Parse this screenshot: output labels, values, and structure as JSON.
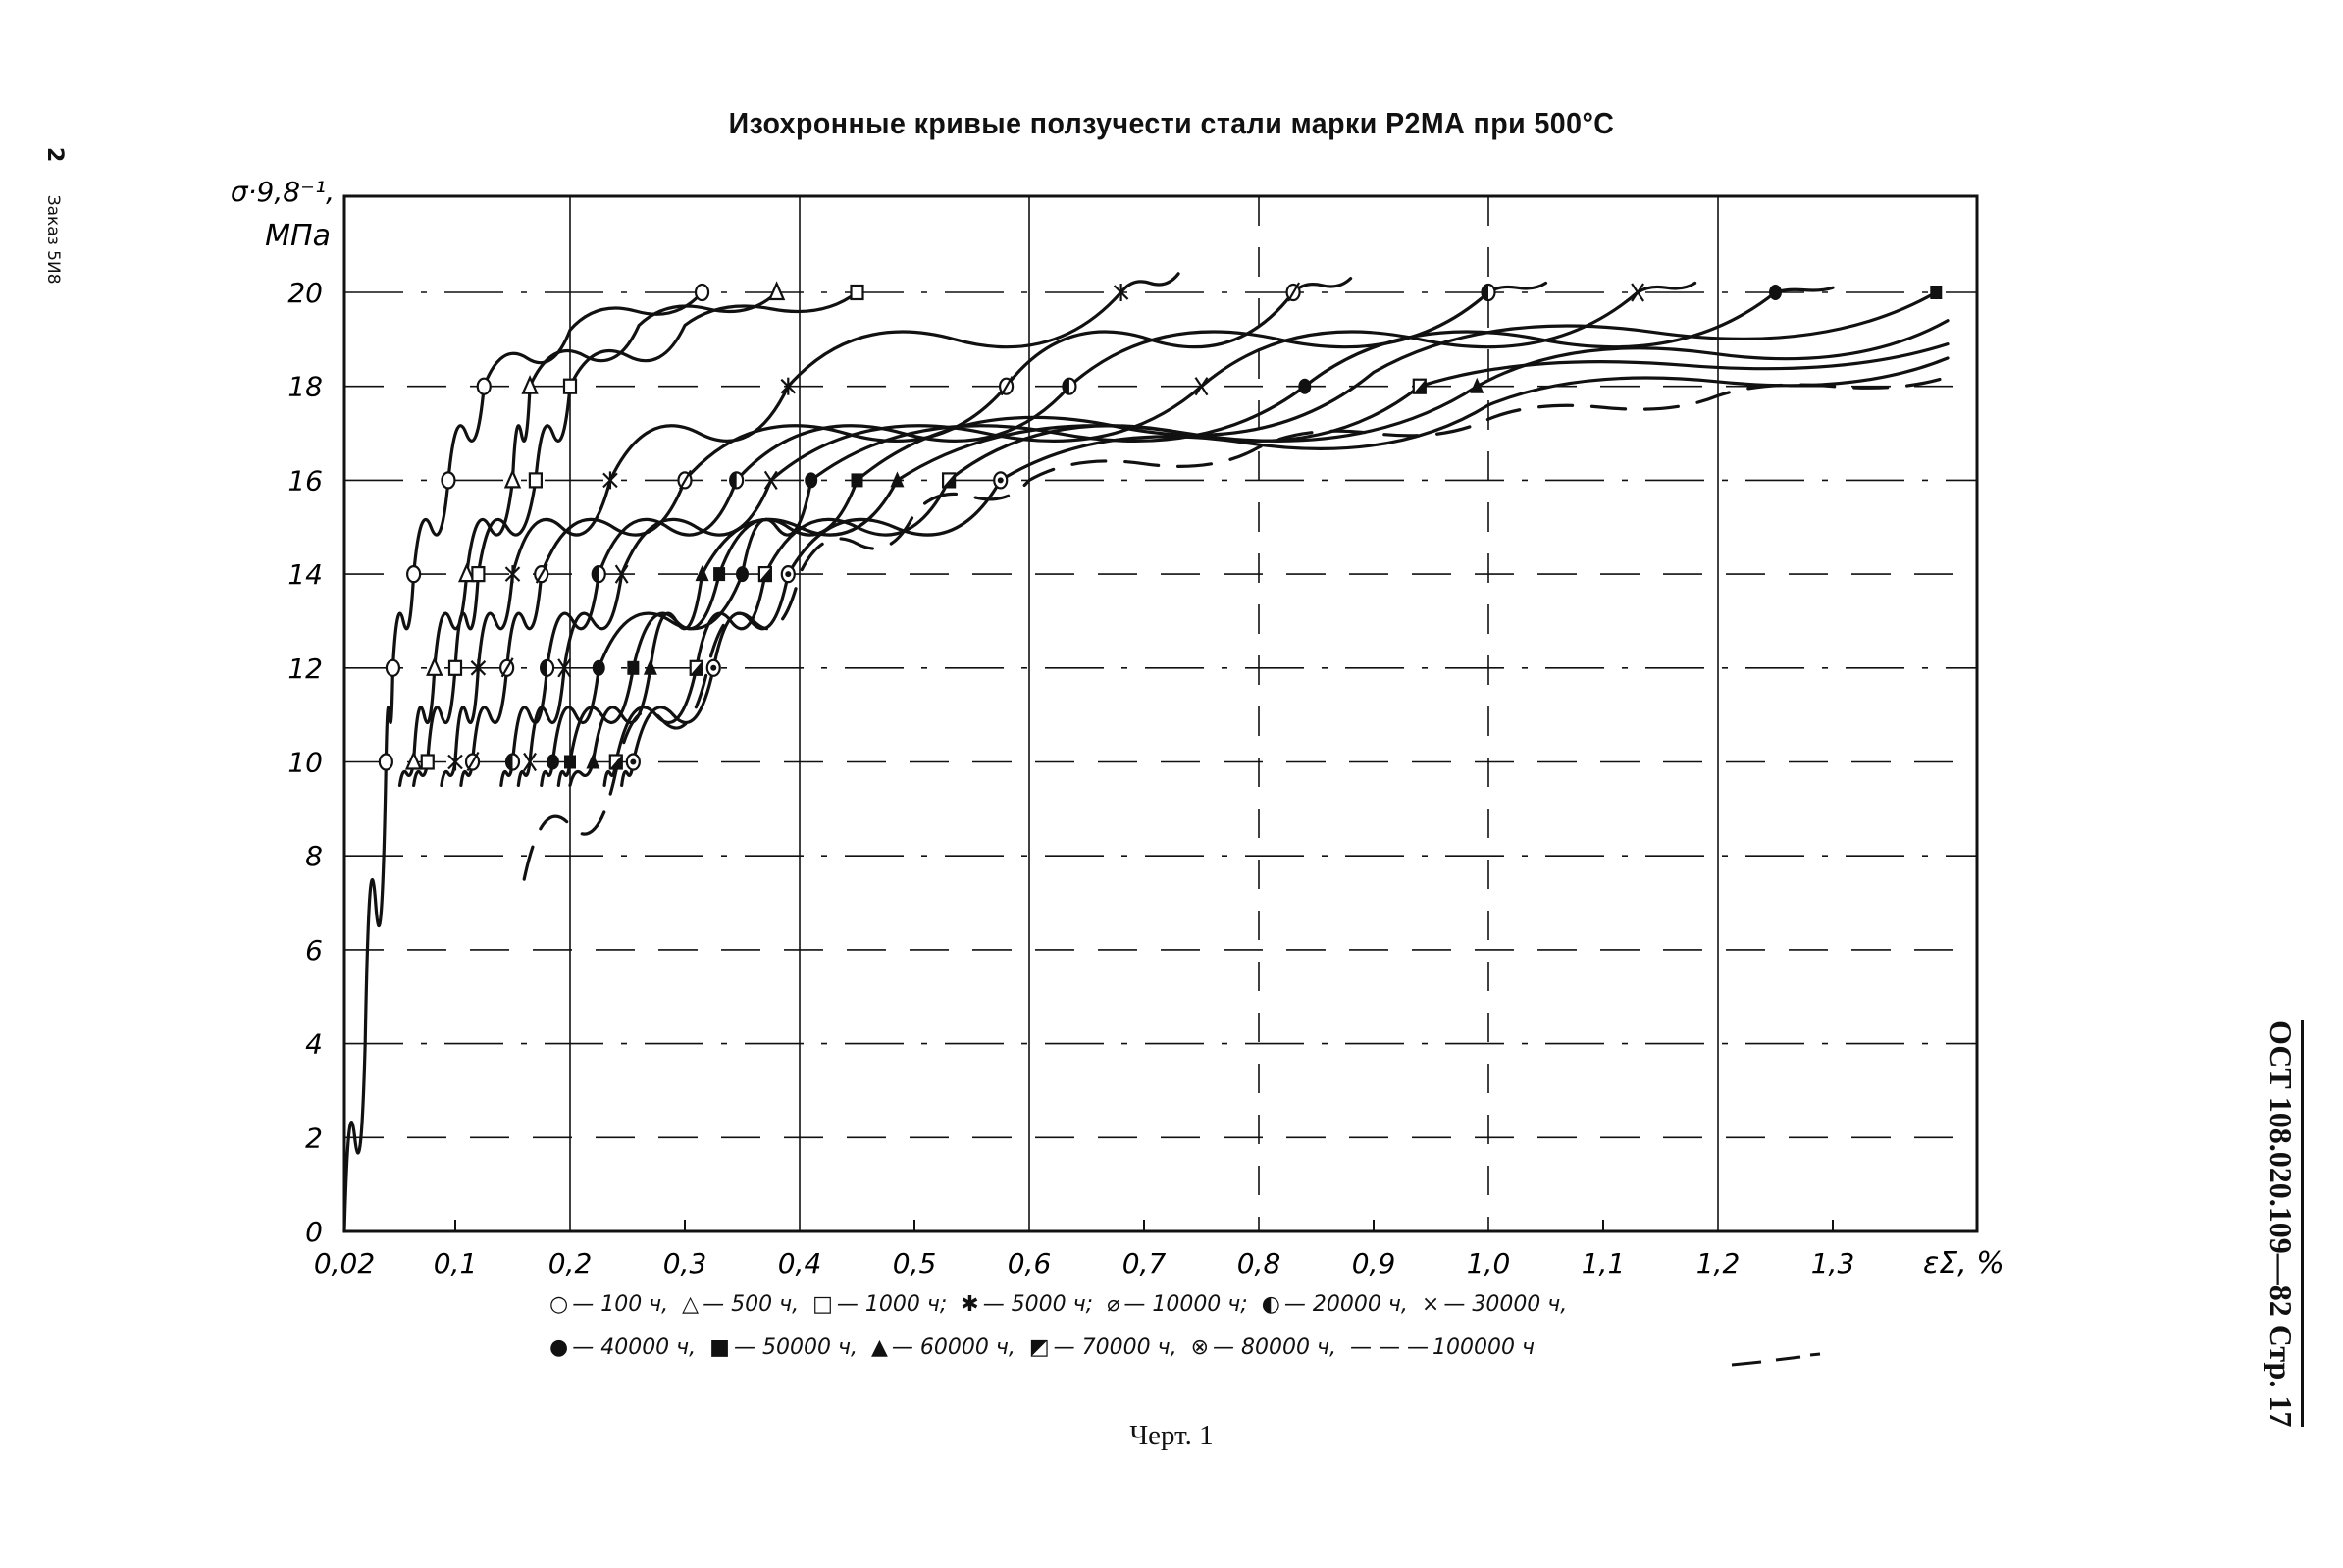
{
  "page": {
    "title": "Изохронные кривые ползучести стали марки Р2МА при 500°С",
    "left_margin_page": "2",
    "left_margin_order": "Заказ 5И8",
    "right_margin": "ОСТ 108.020.109—82 Стр. 17",
    "caption": "Черт. 1"
  },
  "axes": {
    "ylabel_line1": "σ·9,8⁻¹,",
    "ylabel_line2": "МПа",
    "xlabel": "εΣ, %",
    "y_ticks": [
      "0",
      "2",
      "4",
      "6",
      "8",
      "10",
      "12",
      "14",
      "16",
      "18",
      "20"
    ],
    "x_ticks": [
      "0,02",
      "0,1",
      "0,2",
      "0,3",
      "0,4",
      "0,5",
      "0,6",
      "0,7",
      "0,8",
      "0,9",
      "1,0",
      "1,1",
      "1,2",
      "1,3"
    ]
  },
  "legend": {
    "row1": [
      {
        "symbol": "○",
        "label": "— 100 ч,"
      },
      {
        "symbol": "△",
        "label": "— 500 ч,"
      },
      {
        "symbol": "□",
        "label": "— 1000 ч;"
      },
      {
        "symbol": "✱",
        "label": "— 5000 ч;"
      },
      {
        "symbol": "⌀",
        "label": "— 10000 ч;"
      },
      {
        "symbol": "◐",
        "label": "— 20000 ч,"
      },
      {
        "symbol": "×",
        "label": "— 30000 ч,"
      }
    ],
    "row2": [
      {
        "symbol": "●",
        "label": "— 40000 ч,"
      },
      {
        "symbol": "■",
        "label": "— 50000 ч,"
      },
      {
        "symbol": "▲",
        "label": "— 60000 ч,"
      },
      {
        "symbol": "◩",
        "label": "— 70000 ч,"
      },
      {
        "symbol": "⊗",
        "label": "— 80000 ч,"
      },
      {
        "symbol": "— — —",
        "label": "100000 ч"
      }
    ]
  },
  "chart_data": {
    "type": "line",
    "title": "Изохронные кривые ползучести стали марки Р2МА при 500°С",
    "xlabel": "εΣ, %",
    "ylabel": "σ·9,8⁻¹, МПа",
    "xlim": [
      0.02,
      1.4
    ],
    "ylim": [
      0,
      20
    ],
    "grid": true,
    "legend_position": "below",
    "series": [
      {
        "name": "100 ч",
        "marker": "circle-open",
        "x": [
          0.02,
          0.035,
          0.05,
          0.055,
          0.07,
          0.095,
          0.125,
          0.2,
          0.315
        ],
        "y": [
          0,
          4,
          10,
          12,
          14,
          16,
          18,
          19.2,
          20
        ]
      },
      {
        "name": "500 ч",
        "marker": "triangle-open",
        "x": [
          0.06,
          0.07,
          0.085,
          0.11,
          0.15,
          0.165,
          0.26,
          0.38
        ],
        "y": [
          9.5,
          10,
          12,
          14,
          16,
          18,
          19.3,
          20
        ]
      },
      {
        "name": "1000 ч",
        "marker": "square-open",
        "x": [
          0.07,
          0.08,
          0.1,
          0.12,
          0.17,
          0.2,
          0.3,
          0.45
        ],
        "y": [
          9.5,
          10,
          12,
          14,
          16,
          18,
          19.3,
          20
        ]
      },
      {
        "name": "5000 ч",
        "marker": "asterisk",
        "x": [
          0.09,
          0.1,
          0.12,
          0.15,
          0.235,
          0.39,
          0.68,
          0.73
        ],
        "y": [
          9.5,
          10,
          12,
          14,
          16,
          18,
          20,
          20.4
        ]
      },
      {
        "name": "10000 ч",
        "marker": "circle-slash",
        "x": [
          0.105,
          0.115,
          0.145,
          0.175,
          0.3,
          0.58,
          0.83,
          0.88
        ],
        "y": [
          9.5,
          10,
          12,
          14,
          16,
          18,
          20,
          20.3
        ]
      },
      {
        "name": "20000 ч",
        "marker": "circle-half",
        "x": [
          0.14,
          0.15,
          0.18,
          0.225,
          0.345,
          0.635,
          1.0,
          1.05
        ],
        "y": [
          9.5,
          10,
          12,
          14,
          16,
          18,
          20,
          20.2
        ]
      },
      {
        "name": "30000 ч",
        "marker": "x",
        "x": [
          0.155,
          0.165,
          0.195,
          0.245,
          0.375,
          0.75,
          1.13,
          1.18
        ],
        "y": [
          9.5,
          10,
          12,
          14,
          16,
          18,
          20,
          20.2
        ]
      },
      {
        "name": "40000 ч",
        "marker": "circle-filled",
        "x": [
          0.175,
          0.185,
          0.225,
          0.35,
          0.41,
          0.84,
          1.25,
          1.3
        ],
        "y": [
          9.5,
          10,
          12,
          14,
          16,
          18,
          20,
          20.1
        ]
      },
      {
        "name": "50000 ч",
        "marker": "square-filled",
        "x": [
          0.19,
          0.2,
          0.255,
          0.33,
          0.45,
          0.9,
          1.39
        ],
        "y": [
          9.5,
          10,
          12,
          14,
          16,
          18.3,
          20
        ]
      },
      {
        "name": "60000 ч",
        "marker": "triangle-filled",
        "x": [
          0.2,
          0.22,
          0.27,
          0.315,
          0.485,
          0.99,
          1.4
        ],
        "y": [
          9.5,
          10,
          12,
          14,
          16,
          18,
          19.4
        ]
      },
      {
        "name": "70000 ч",
        "marker": "square-half",
        "x": [
          0.23,
          0.24,
          0.31,
          0.37,
          0.53,
          0.94,
          1.4
        ],
        "y": [
          9.5,
          10,
          12,
          14,
          16,
          18,
          18.9
        ]
      },
      {
        "name": "80000 ч",
        "marker": "circle-cross",
        "x": [
          0.245,
          0.255,
          0.325,
          0.39,
          0.575,
          1.0,
          1.4
        ],
        "y": [
          9.5,
          10,
          12,
          14,
          16,
          17.6,
          18.6
        ]
      },
      {
        "name": "100000 ч",
        "marker": "none",
        "line": "dashed",
        "x": [
          0.16,
          0.24,
          0.32,
          0.4,
          0.5,
          0.6,
          0.8,
          1.0,
          1.2,
          1.4
        ],
        "y": [
          7.5,
          9.8,
          12,
          14,
          15.3,
          16,
          16.7,
          17.3,
          17.8,
          18.2
        ]
      }
    ]
  }
}
